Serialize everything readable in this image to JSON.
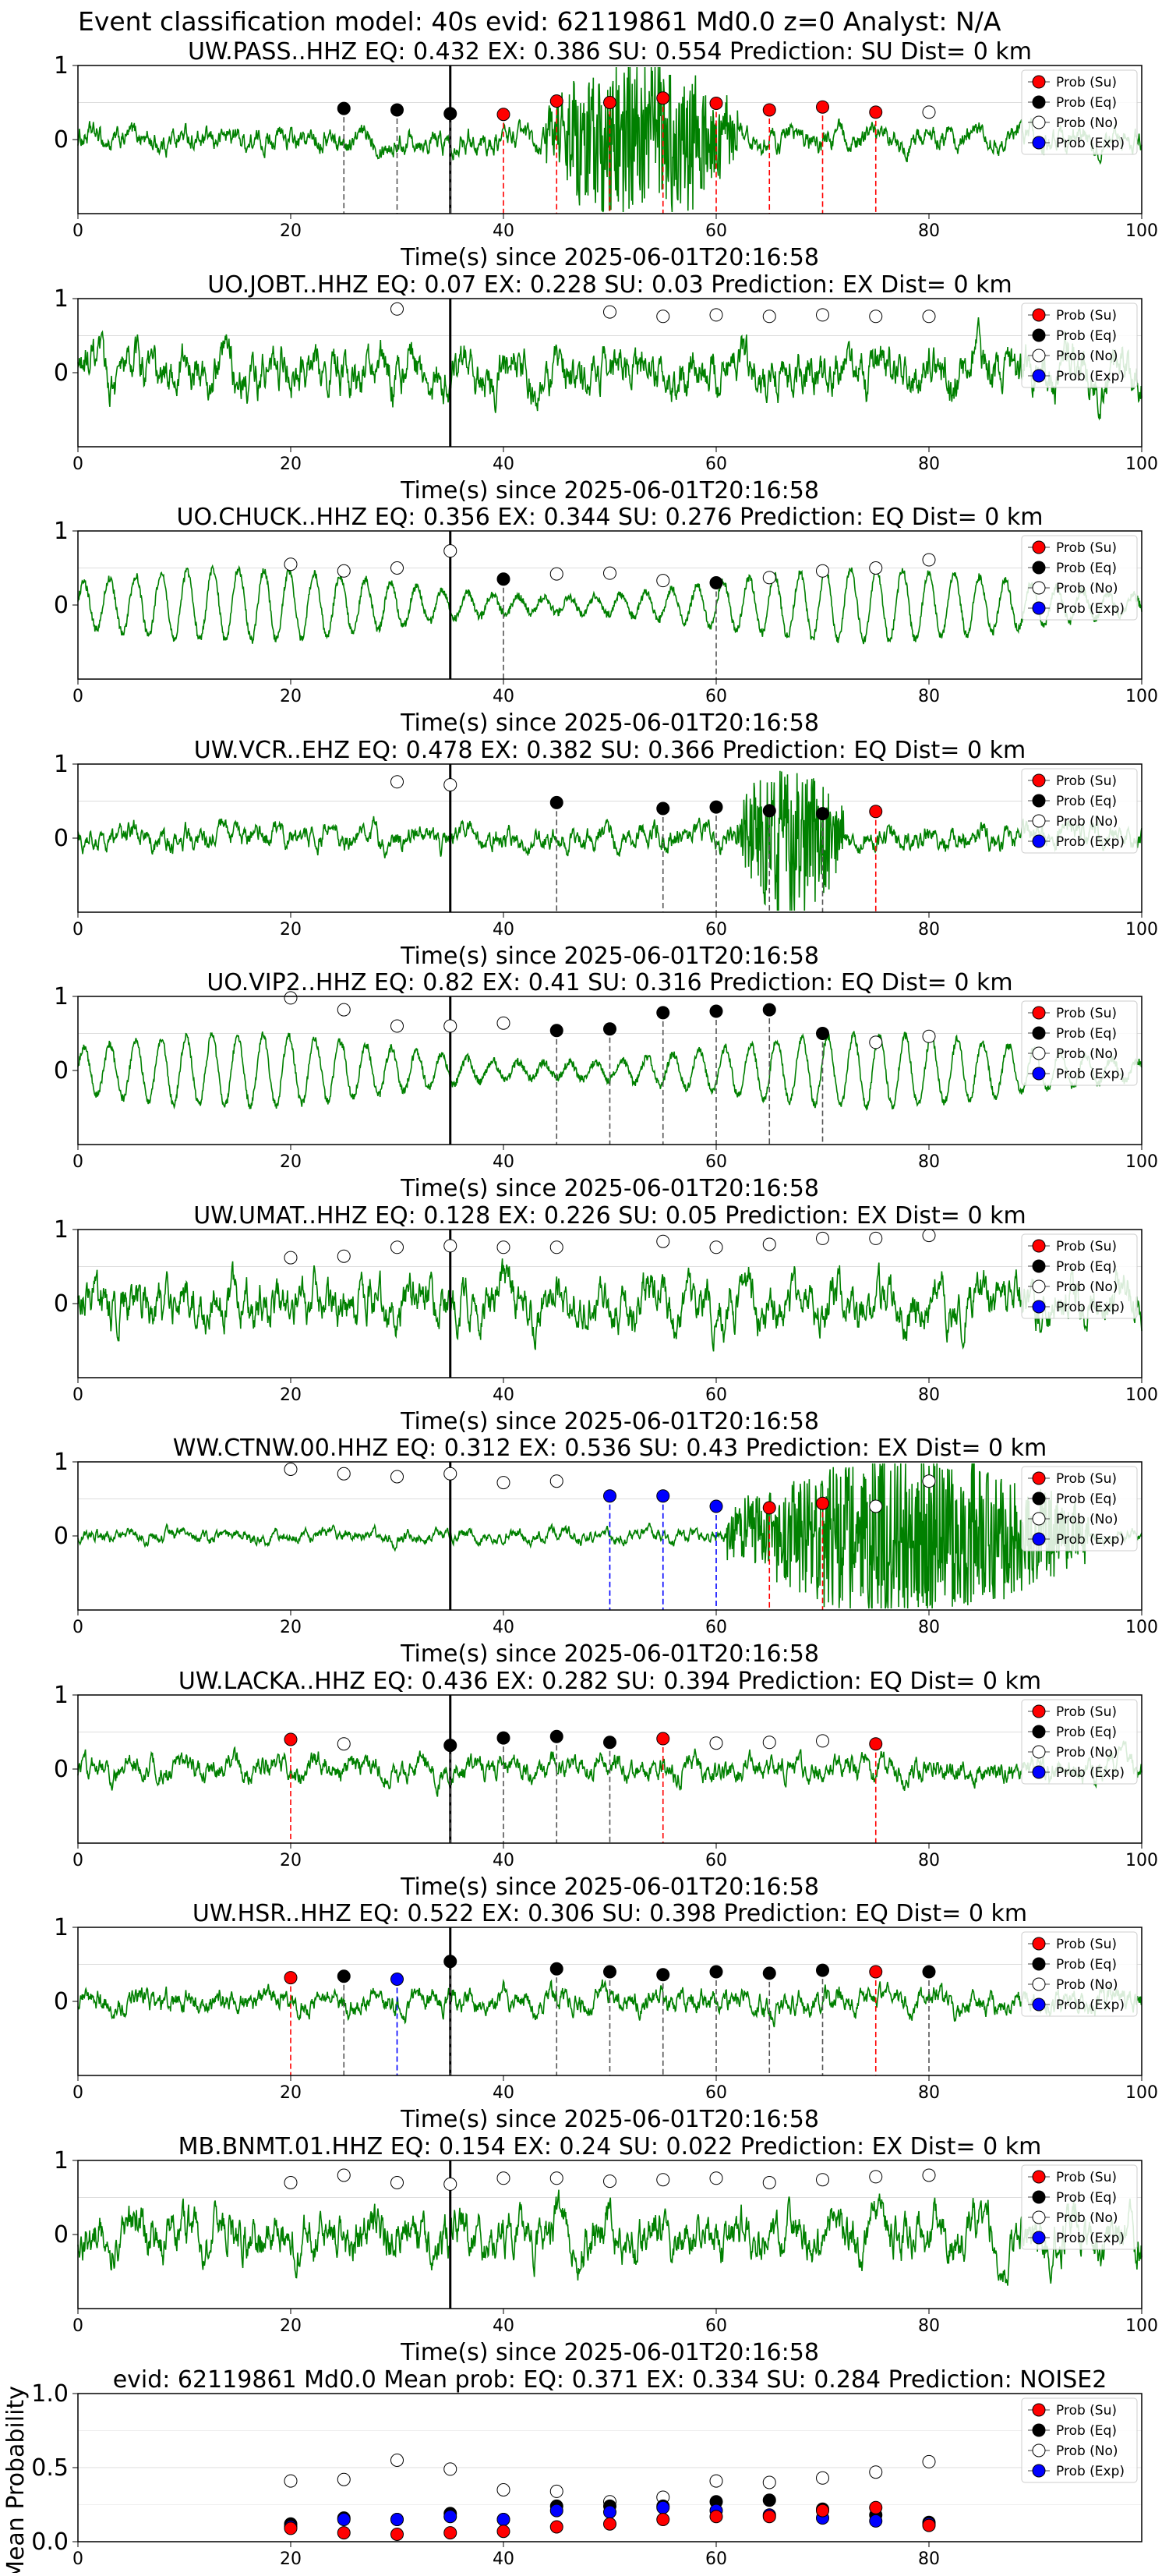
{
  "suptitle": "Event classification model: 40s evid: 62119861 Md0.0 z=0 Analyst: N/A",
  "legend": [
    {
      "label": "Prob (Su)",
      "color": "#ff0000",
      "filled": true
    },
    {
      "label": "Prob (Eq)",
      "color": "#000000",
      "filled": true
    },
    {
      "label": "Prob (No)",
      "color": "#ffffff",
      "filled": false
    },
    {
      "label": "Prob (Exp)",
      "color": "#0000ff",
      "filled": true
    }
  ],
  "colors": {
    "trace": "#008000",
    "su": "#ff0000",
    "eq": "#000000",
    "no": "#ffffff",
    "exp": "#0000ff",
    "grid": "#dddddd"
  },
  "chart_data": [
    {
      "type": "line",
      "title": "UW.PASS..HHZ   EQ: 0.432  EX: 0.386  SU: 0.554   Prediction: SU    Dist= 0 km",
      "xlabel": "Time(s) since 2025-06-01T20:16:58",
      "ylabel": "",
      "xlim": [
        0,
        100
      ],
      "ylim": [
        -1,
        1
      ],
      "xticks": [
        0,
        20,
        40,
        60,
        80,
        100
      ],
      "yticks": [
        0,
        1
      ],
      "amplitude": "medium",
      "burst": [
        44,
        62
      ],
      "onset": 35,
      "points": [
        {
          "x": 25,
          "y": 0.42,
          "cls": "eq"
        },
        {
          "x": 30,
          "y": 0.4,
          "cls": "eq"
        },
        {
          "x": 35,
          "y": 0.35,
          "cls": "eq"
        },
        {
          "x": 40,
          "y": 0.34,
          "cls": "su"
        },
        {
          "x": 45,
          "y": 0.52,
          "cls": "su"
        },
        {
          "x": 50,
          "y": 0.5,
          "cls": "su"
        },
        {
          "x": 55,
          "y": 0.56,
          "cls": "su"
        },
        {
          "x": 60,
          "y": 0.49,
          "cls": "su"
        },
        {
          "x": 65,
          "y": 0.4,
          "cls": "su"
        },
        {
          "x": 70,
          "y": 0.44,
          "cls": "su"
        },
        {
          "x": 75,
          "y": 0.37,
          "cls": "su"
        },
        {
          "x": 80,
          "y": 0.37,
          "cls": "no"
        }
      ]
    },
    {
      "type": "line",
      "title": "UO.JOBT..HHZ   EQ: 0.07  EX: 0.228  SU: 0.03   Prediction: EX    Dist= 0 km",
      "xlabel": "Time(s) since 2025-06-01T20:16:58",
      "ylabel": "",
      "xlim": [
        0,
        100
      ],
      "ylim": [
        -1,
        1
      ],
      "xticks": [
        0,
        20,
        40,
        60,
        80,
        100
      ],
      "yticks": [
        0,
        1
      ],
      "amplitude": "high",
      "burst": null,
      "onset": 35,
      "points": [
        {
          "x": 30,
          "y": 0.86,
          "cls": "no"
        },
        {
          "x": 50,
          "y": 0.82,
          "cls": "no"
        },
        {
          "x": 55,
          "y": 0.76,
          "cls": "no"
        },
        {
          "x": 60,
          "y": 0.78,
          "cls": "no"
        },
        {
          "x": 65,
          "y": 0.76,
          "cls": "no"
        },
        {
          "x": 70,
          "y": 0.78,
          "cls": "no"
        },
        {
          "x": 75,
          "y": 0.76,
          "cls": "no"
        },
        {
          "x": 80,
          "y": 0.76,
          "cls": "no"
        }
      ]
    },
    {
      "type": "line",
      "title": "UO.CHUCK..HHZ   EQ: 0.356  EX: 0.344  SU: 0.276   Prediction: EQ    Dist= 0 km",
      "xlabel": "Time(s) since 2025-06-01T20:16:58",
      "ylabel": "",
      "xlim": [
        0,
        100
      ],
      "ylim": [
        -1,
        1
      ],
      "xticks": [
        0,
        20,
        40,
        60,
        80,
        100
      ],
      "yticks": [
        0,
        1
      ],
      "amplitude": "wave",
      "burst": null,
      "onset": 35,
      "points": [
        {
          "x": 20,
          "y": 0.55,
          "cls": "no"
        },
        {
          "x": 25,
          "y": 0.46,
          "cls": "no"
        },
        {
          "x": 30,
          "y": 0.5,
          "cls": "no"
        },
        {
          "x": 35,
          "y": 0.73,
          "cls": "no"
        },
        {
          "x": 40,
          "y": 0.35,
          "cls": "eq"
        },
        {
          "x": 45,
          "y": 0.42,
          "cls": "no"
        },
        {
          "x": 50,
          "y": 0.43,
          "cls": "no"
        },
        {
          "x": 55,
          "y": 0.33,
          "cls": "no"
        },
        {
          "x": 60,
          "y": 0.3,
          "cls": "eq"
        },
        {
          "x": 65,
          "y": 0.37,
          "cls": "no"
        },
        {
          "x": 70,
          "y": 0.46,
          "cls": "no"
        },
        {
          "x": 75,
          "y": 0.5,
          "cls": "no"
        },
        {
          "x": 80,
          "y": 0.61,
          "cls": "no"
        }
      ]
    },
    {
      "type": "line",
      "title": "UW.VCR..EHZ   EQ: 0.478  EX: 0.382  SU: 0.366   Prediction: EQ    Dist= 0 km",
      "xlabel": "Time(s) since 2025-06-01T20:16:58",
      "ylabel": "",
      "xlim": [
        0,
        100
      ],
      "ylim": [
        -1,
        1
      ],
      "xticks": [
        0,
        20,
        40,
        60,
        80,
        100
      ],
      "yticks": [
        0,
        1
      ],
      "amplitude": "medium",
      "burst": [
        62,
        72
      ],
      "onset": 35,
      "points": [
        {
          "x": 30,
          "y": 0.76,
          "cls": "no"
        },
        {
          "x": 35,
          "y": 0.72,
          "cls": "no"
        },
        {
          "x": 45,
          "y": 0.48,
          "cls": "eq"
        },
        {
          "x": 55,
          "y": 0.4,
          "cls": "eq"
        },
        {
          "x": 60,
          "y": 0.42,
          "cls": "eq"
        },
        {
          "x": 65,
          "y": 0.37,
          "cls": "eq"
        },
        {
          "x": 70,
          "y": 0.33,
          "cls": "eq"
        },
        {
          "x": 75,
          "y": 0.36,
          "cls": "su"
        }
      ]
    },
    {
      "type": "line",
      "title": "UO.VIP2..HHZ   EQ: 0.82  EX: 0.41  SU: 0.316   Prediction: EQ    Dist= 0 km",
      "xlabel": "Time(s) since 2025-06-01T20:16:58",
      "ylabel": "",
      "xlim": [
        0,
        100
      ],
      "ylim": [
        -1,
        1
      ],
      "xticks": [
        0,
        20,
        40,
        60,
        80,
        100
      ],
      "yticks": [
        0,
        1
      ],
      "amplitude": "wave",
      "burst": null,
      "onset": 35,
      "points": [
        {
          "x": 20,
          "y": 0.98,
          "cls": "no"
        },
        {
          "x": 25,
          "y": 0.82,
          "cls": "no"
        },
        {
          "x": 30,
          "y": 0.6,
          "cls": "no"
        },
        {
          "x": 35,
          "y": 0.6,
          "cls": "no"
        },
        {
          "x": 40,
          "y": 0.64,
          "cls": "no"
        },
        {
          "x": 45,
          "y": 0.54,
          "cls": "eq"
        },
        {
          "x": 50,
          "y": 0.56,
          "cls": "eq"
        },
        {
          "x": 55,
          "y": 0.78,
          "cls": "eq"
        },
        {
          "x": 60,
          "y": 0.8,
          "cls": "eq"
        },
        {
          "x": 65,
          "y": 0.82,
          "cls": "eq"
        },
        {
          "x": 70,
          "y": 0.5,
          "cls": "eq"
        },
        {
          "x": 75,
          "y": 0.38,
          "cls": "no"
        },
        {
          "x": 80,
          "y": 0.46,
          "cls": "no"
        }
      ]
    },
    {
      "type": "line",
      "title": "UW.UMAT..HHZ   EQ: 0.128  EX: 0.226  SU: 0.05   Prediction: EX    Dist= 0 km",
      "xlabel": "Time(s) since 2025-06-01T20:16:58",
      "ylabel": "",
      "xlim": [
        0,
        100
      ],
      "ylim": [
        -1,
        1
      ],
      "xticks": [
        0,
        20,
        40,
        60,
        80,
        100
      ],
      "yticks": [
        0,
        1
      ],
      "amplitude": "high",
      "burst": null,
      "onset": 35,
      "points": [
        {
          "x": 20,
          "y": 0.62,
          "cls": "no"
        },
        {
          "x": 25,
          "y": 0.64,
          "cls": "no"
        },
        {
          "x": 30,
          "y": 0.76,
          "cls": "no"
        },
        {
          "x": 35,
          "y": 0.78,
          "cls": "no"
        },
        {
          "x": 40,
          "y": 0.76,
          "cls": "no"
        },
        {
          "x": 45,
          "y": 0.76,
          "cls": "no"
        },
        {
          "x": 55,
          "y": 0.84,
          "cls": "no"
        },
        {
          "x": 60,
          "y": 0.76,
          "cls": "no"
        },
        {
          "x": 65,
          "y": 0.8,
          "cls": "no"
        },
        {
          "x": 70,
          "y": 0.88,
          "cls": "no"
        },
        {
          "x": 75,
          "y": 0.88,
          "cls": "no"
        },
        {
          "x": 80,
          "y": 0.92,
          "cls": "no"
        }
      ]
    },
    {
      "type": "line",
      "title": "WW.CTNW.00.HHZ   EQ: 0.312  EX: 0.536  SU: 0.43   Prediction: EX    Dist= 0 km",
      "xlabel": "Time(s) since 2025-06-01T20:16:58",
      "ylabel": "",
      "xlim": [
        0,
        100
      ],
      "ylim": [
        -1,
        1
      ],
      "xticks": [
        0,
        20,
        40,
        60,
        80,
        100
      ],
      "yticks": [
        0,
        1
      ],
      "amplitude": "low",
      "burst": [
        61,
        95
      ],
      "onset": 35,
      "points": [
        {
          "x": 20,
          "y": 0.9,
          "cls": "no"
        },
        {
          "x": 25,
          "y": 0.84,
          "cls": "no"
        },
        {
          "x": 30,
          "y": 0.8,
          "cls": "no"
        },
        {
          "x": 35,
          "y": 0.84,
          "cls": "no"
        },
        {
          "x": 40,
          "y": 0.72,
          "cls": "no"
        },
        {
          "x": 45,
          "y": 0.74,
          "cls": "no"
        },
        {
          "x": 50,
          "y": 0.54,
          "cls": "exp"
        },
        {
          "x": 55,
          "y": 0.54,
          "cls": "exp"
        },
        {
          "x": 60,
          "y": 0.4,
          "cls": "exp"
        },
        {
          "x": 65,
          "y": 0.38,
          "cls": "su"
        },
        {
          "x": 70,
          "y": 0.44,
          "cls": "su"
        },
        {
          "x": 75,
          "y": 0.4,
          "cls": "no"
        },
        {
          "x": 80,
          "y": 0.74,
          "cls": "no"
        }
      ]
    },
    {
      "type": "line",
      "title": "UW.LACKA..HHZ   EQ: 0.436  EX: 0.282  SU: 0.394   Prediction: EQ    Dist= 0 km",
      "xlabel": "Time(s) since 2025-06-01T20:16:58",
      "ylabel": "",
      "xlim": [
        0,
        100
      ],
      "ylim": [
        -1,
        1
      ],
      "xticks": [
        0,
        20,
        40,
        60,
        80,
        100
      ],
      "yticks": [
        0,
        1
      ],
      "amplitude": "medium",
      "burst": null,
      "onset": 35,
      "points": [
        {
          "x": 20,
          "y": 0.4,
          "cls": "su"
        },
        {
          "x": 25,
          "y": 0.34,
          "cls": "no"
        },
        {
          "x": 35,
          "y": 0.32,
          "cls": "eq"
        },
        {
          "x": 40,
          "y": 0.42,
          "cls": "eq"
        },
        {
          "x": 45,
          "y": 0.44,
          "cls": "eq"
        },
        {
          "x": 50,
          "y": 0.36,
          "cls": "eq"
        },
        {
          "x": 55,
          "y": 0.41,
          "cls": "su"
        },
        {
          "x": 60,
          "y": 0.35,
          "cls": "no"
        },
        {
          "x": 65,
          "y": 0.36,
          "cls": "no"
        },
        {
          "x": 70,
          "y": 0.38,
          "cls": "no"
        },
        {
          "x": 75,
          "y": 0.34,
          "cls": "su"
        }
      ]
    },
    {
      "type": "line",
      "title": "UW.HSR..HHZ   EQ: 0.522  EX: 0.306  SU: 0.398   Prediction: EQ    Dist= 0 km",
      "xlabel": "Time(s) since 2025-06-01T20:16:58",
      "ylabel": "",
      "xlim": [
        0,
        100
      ],
      "ylim": [
        -1,
        1
      ],
      "xticks": [
        0,
        20,
        40,
        60,
        80,
        100
      ],
      "yticks": [
        0,
        1
      ],
      "amplitude": "medium",
      "burst": null,
      "onset": 35,
      "points": [
        {
          "x": 20,
          "y": 0.32,
          "cls": "su"
        },
        {
          "x": 25,
          "y": 0.34,
          "cls": "eq"
        },
        {
          "x": 30,
          "y": 0.3,
          "cls": "exp"
        },
        {
          "x": 35,
          "y": 0.54,
          "cls": "eq"
        },
        {
          "x": 45,
          "y": 0.44,
          "cls": "eq"
        },
        {
          "x": 50,
          "y": 0.4,
          "cls": "eq"
        },
        {
          "x": 55,
          "y": 0.36,
          "cls": "eq"
        },
        {
          "x": 60,
          "y": 0.4,
          "cls": "eq"
        },
        {
          "x": 65,
          "y": 0.38,
          "cls": "eq"
        },
        {
          "x": 70,
          "y": 0.42,
          "cls": "eq"
        },
        {
          "x": 75,
          "y": 0.4,
          "cls": "su"
        },
        {
          "x": 80,
          "y": 0.4,
          "cls": "eq"
        }
      ]
    },
    {
      "type": "line",
      "title": "MB.BNMT.01.HHZ   EQ: 0.154  EX: 0.24  SU: 0.022   Prediction: EX    Dist= 0 km",
      "xlabel": "Time(s) since 2025-06-01T20:16:58",
      "ylabel": "",
      "xlim": [
        0,
        100
      ],
      "ylim": [
        -1,
        1
      ],
      "xticks": [
        0,
        20,
        40,
        60,
        80,
        100
      ],
      "yticks": [
        0,
        1
      ],
      "amplitude": "high",
      "burst": null,
      "onset": 35,
      "points": [
        {
          "x": 20,
          "y": 0.7,
          "cls": "no"
        },
        {
          "x": 25,
          "y": 0.8,
          "cls": "no"
        },
        {
          "x": 30,
          "y": 0.7,
          "cls": "no"
        },
        {
          "x": 35,
          "y": 0.68,
          "cls": "no"
        },
        {
          "x": 40,
          "y": 0.76,
          "cls": "no"
        },
        {
          "x": 45,
          "y": 0.76,
          "cls": "no"
        },
        {
          "x": 50,
          "y": 0.72,
          "cls": "no"
        },
        {
          "x": 55,
          "y": 0.74,
          "cls": "no"
        },
        {
          "x": 60,
          "y": 0.76,
          "cls": "no"
        },
        {
          "x": 65,
          "y": 0.7,
          "cls": "no"
        },
        {
          "x": 70,
          "y": 0.74,
          "cls": "no"
        },
        {
          "x": 75,
          "y": 0.78,
          "cls": "no"
        },
        {
          "x": 80,
          "y": 0.8,
          "cls": "no"
        }
      ]
    },
    {
      "type": "scatter",
      "title": "evid: 62119861  Md0.0   Mean prob:   EQ: 0.371  EX: 0.334  SU: 0.284   Prediction: NOISE2",
      "xlabel": "",
      "ylabel": "Mean Probability",
      "xlim": [
        0,
        100
      ],
      "ylim": [
        0,
        1
      ],
      "xticks": [
        0,
        20,
        40,
        60,
        80
      ],
      "yticks": [
        0.0,
        0.5,
        1.0
      ],
      "x": [
        20,
        25,
        30,
        35,
        40,
        45,
        50,
        55,
        60,
        65,
        70,
        75,
        80
      ],
      "series": [
        {
          "name": "Prob (No)",
          "cls": "no",
          "values": [
            0.41,
            0.42,
            0.55,
            0.49,
            0.35,
            0.34,
            0.27,
            0.3,
            0.41,
            0.4,
            0.43,
            0.47,
            0.54
          ]
        },
        {
          "name": "Prob (Eq)",
          "cls": "eq",
          "values": [
            0.12,
            0.16,
            0.15,
            0.19,
            0.15,
            0.24,
            0.24,
            0.24,
            0.27,
            0.28,
            0.22,
            0.18,
            0.13
          ]
        },
        {
          "name": "Prob (Exp)",
          "cls": "exp",
          "values": [
            0.1,
            0.15,
            0.15,
            0.17,
            0.15,
            0.21,
            0.2,
            0.23,
            0.21,
            0.18,
            0.16,
            0.14,
            0.12
          ]
        },
        {
          "name": "Prob (Su)",
          "cls": "su",
          "values": [
            0.09,
            0.06,
            0.05,
            0.06,
            0.07,
            0.1,
            0.12,
            0.15,
            0.17,
            0.17,
            0.21,
            0.23,
            0.11
          ]
        }
      ]
    }
  ]
}
